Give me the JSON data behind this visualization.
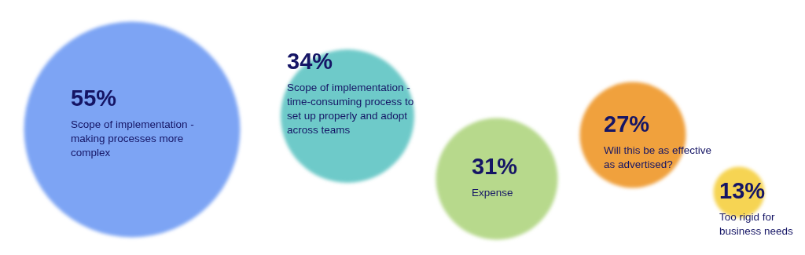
{
  "chart_data": {
    "type": "other",
    "categories": [
      "Scope of implementation - making processes more complex",
      "Scope of implementation - time-consuming process to set up properly and adopt across teams",
      "Expense",
      "Will this be as effective as advertised?",
      "Too rigid for business needs"
    ],
    "values": [
      55,
      34,
      31,
      27,
      13
    ],
    "colors": [
      "#7da4f4",
      "#6ecac9",
      "#b7d98c",
      "#f0a13e",
      "#f6d452"
    ],
    "value_labels": [
      "55%",
      "34%",
      "31%",
      "27%",
      "13%"
    ]
  }
}
